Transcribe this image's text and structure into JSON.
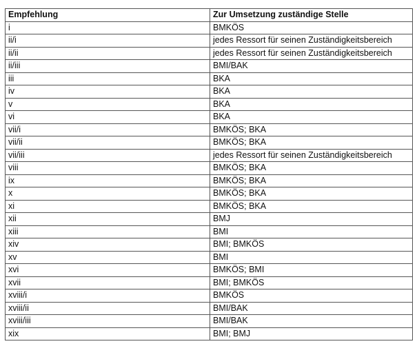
{
  "headers": [
    "Empfehlung",
    "Zur Umsetzung zuständige Stelle"
  ],
  "rows": [
    [
      "i",
      "BMKÖS"
    ],
    [
      "ii/i",
      "jedes Ressort für seinen Zuständigkeitsbereich"
    ],
    [
      "ii/ii",
      "jedes Ressort für seinen Zuständigkeitsbereich"
    ],
    [
      "ii/iii",
      "BMI/BAK"
    ],
    [
      "iii",
      "BKA"
    ],
    [
      "iv",
      "BKA"
    ],
    [
      "v",
      "BKA"
    ],
    [
      "vi",
      "BKA"
    ],
    [
      "vii/i",
      "BMKÖS; BKA"
    ],
    [
      "vii/ii",
      "BMKÖS; BKA"
    ],
    [
      "vii/iii",
      "jedes Ressort für seinen Zuständigkeitsbereich"
    ],
    [
      "viii",
      "BMKÖS; BKA"
    ],
    [
      "ix",
      "BMKÖS; BKA"
    ],
    [
      "x",
      "BMKÖS; BKA"
    ],
    [
      "xi",
      "BMKÖS; BKA"
    ],
    [
      "xii",
      "BMJ"
    ],
    [
      "xiii",
      "BMI"
    ],
    [
      "xiv",
      "BMI; BMKÖS"
    ],
    [
      "xv",
      "BMI"
    ],
    [
      "xvi",
      "BMKÖS; BMI"
    ],
    [
      "xvii",
      "BMI; BMKÖS"
    ],
    [
      "xviii/i",
      "BMKÖS"
    ],
    [
      "xviii/ii",
      "BMI/BAK"
    ],
    [
      "xviii/iii",
      "BMI/BAK"
    ],
    [
      "xix",
      "BMI; BMJ"
    ]
  ]
}
